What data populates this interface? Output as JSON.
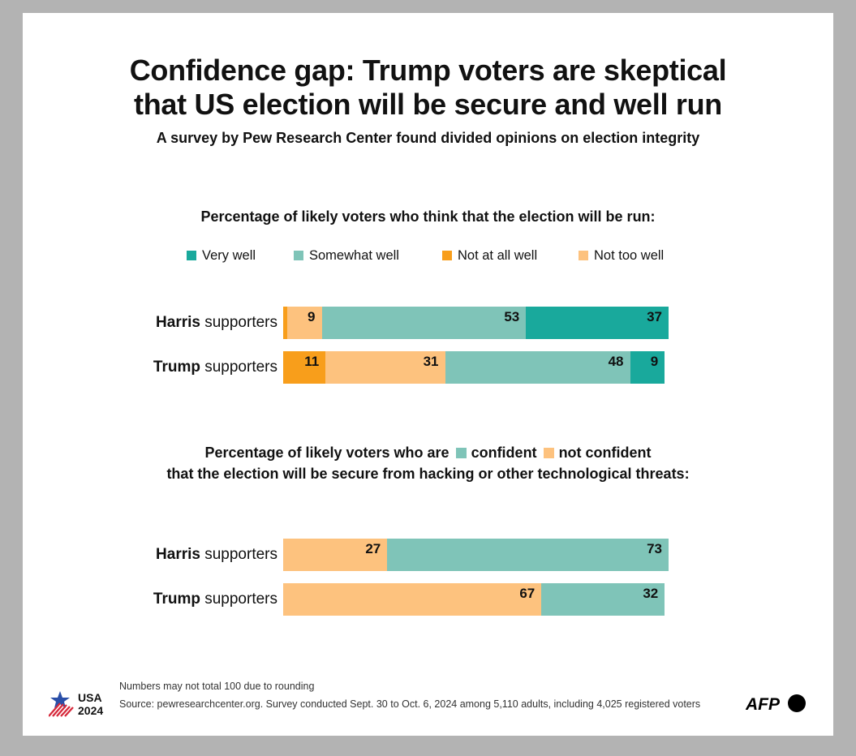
{
  "title_line1": "Confidence gap: Trump voters are skeptical",
  "title_line2": "that US election will be secure and well run",
  "subtitle": "A survey by Pew Research Center found divided opinions on election integrity",
  "chart_data": [
    {
      "type": "bar",
      "orientation": "horizontal",
      "stacked": true,
      "title": "Percentage of likely voters who think that the election will be run:",
      "categories": [
        "Harris supporters",
        "Trump supporters"
      ],
      "category_bold": [
        "Harris",
        "Trump"
      ],
      "category_rest": [
        "supporters",
        "supporters"
      ],
      "legend_position": "top",
      "series": [
        {
          "name": "Not at all well",
          "color": "#f89e1b",
          "values": [
            1,
            11
          ],
          "labels": [
            "",
            "11"
          ]
        },
        {
          "name": "Not too well",
          "color": "#fdc27e",
          "values": [
            9,
            31
          ],
          "labels": [
            "9",
            "31"
          ]
        },
        {
          "name": "Somewhat well",
          "color": "#7fc4b8",
          "values": [
            53,
            48
          ],
          "labels": [
            "53",
            "48"
          ]
        },
        {
          "name": "Very well",
          "color": "#19a99c",
          "values": [
            37,
            9
          ],
          "labels": [
            "37",
            "9"
          ]
        }
      ],
      "legend_order": [
        "Very well",
        "Somewhat well",
        "Not at all well",
        "Not too well"
      ],
      "xlim": [
        0,
        100
      ]
    },
    {
      "type": "bar",
      "orientation": "horizontal",
      "stacked": true,
      "title_prefix": "Percentage of likely voters who are",
      "title_line2": "that the election will be secure from hacking or other technological threats:",
      "categories": [
        "Harris supporters",
        "Trump supporters"
      ],
      "category_bold": [
        "Harris",
        "Trump"
      ],
      "category_rest": [
        "supporters",
        "supporters"
      ],
      "series": [
        {
          "name": "not confident",
          "color": "#fdc27e",
          "values": [
            27,
            67
          ],
          "labels": [
            "27",
            "67"
          ]
        },
        {
          "name": "confident",
          "color": "#7fc4b8",
          "values": [
            73,
            32
          ],
          "labels": [
            "73",
            "32"
          ]
        }
      ],
      "xlim": [
        0,
        100
      ]
    }
  ],
  "footnote": "Numbers may not  total 100 due to rounding",
  "source": "Source: pewresearchcenter.org. Survey conducted Sept. 30 to Oct. 6, 2024 among 5,110 adults, including 4,025 registered voters",
  "logo_usa_line1": "USA",
  "logo_usa_line2": "2024",
  "logo_afp": "AFP"
}
